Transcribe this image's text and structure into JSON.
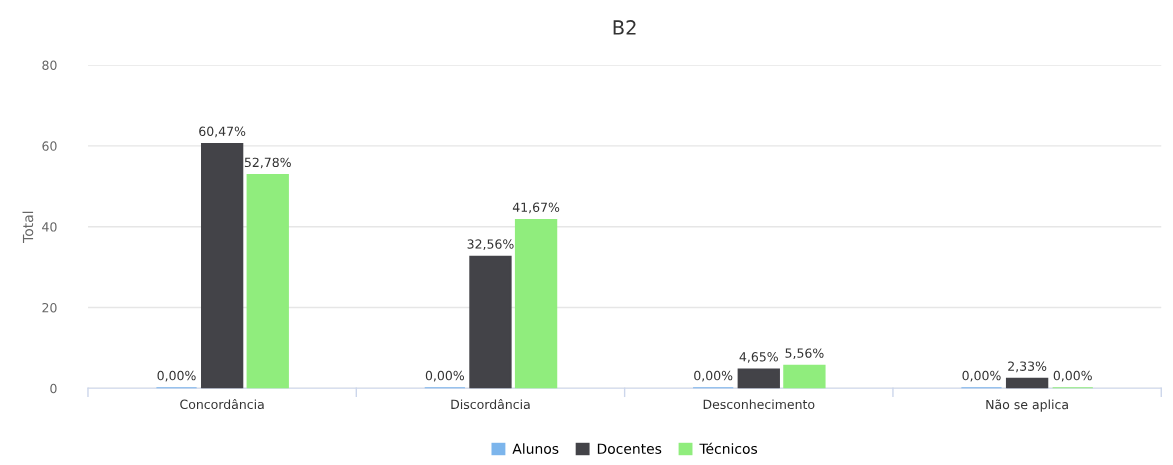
{
  "chart_data": {
    "type": "bar",
    "title": "B2",
    "ylabel": "Total",
    "categories": [
      "Concordância",
      "Discordância",
      "Desconhecimento",
      "Não se aplica"
    ],
    "series": [
      {
        "name": "Alunos",
        "color": "#7cb5ec",
        "values": [
          0,
          0,
          0,
          0
        ],
        "value_labels": [
          "0,00%",
          "0,00%",
          "0,00%",
          "0,00%"
        ]
      },
      {
        "name": "Docentes",
        "color": "#434348",
        "values": [
          60.47,
          32.56,
          4.65,
          2.33
        ],
        "value_labels": [
          "60,47%",
          "32,56%",
          "4,65%",
          "2,33%"
        ]
      },
      {
        "name": "Técnicos",
        "color": "#90ed7d",
        "values": [
          52.78,
          41.67,
          5.56,
          0
        ],
        "value_labels": [
          "52,78%",
          "41,67%",
          "5,56%",
          "0,00%"
        ]
      }
    ],
    "ylim": [
      0,
      80
    ],
    "yticks": [
      0,
      20,
      40,
      60,
      80
    ],
    "grid": "y",
    "legend": "bottom"
  }
}
